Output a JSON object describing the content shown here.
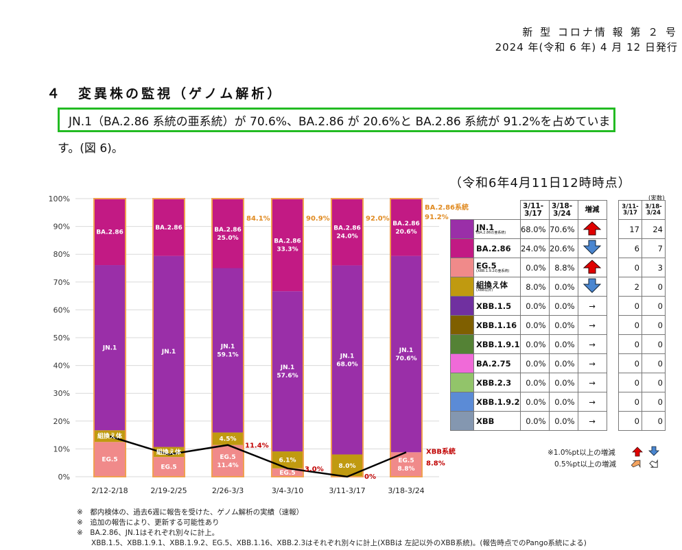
{
  "header": {
    "line1": "新 型 コロナ情 報 第 ２ 号",
    "line2": "2024 年(令和 6 年) 4 月 12 日発行"
  },
  "section_title": "４　変異株の監視（ゲノム解析）",
  "paragraph": {
    "line1": "JN.1（BA.2.86 系統の亜系統）が 70.6%、BA.2.86 が 20.6%と BA.2.86 系統が 91.2%を占めていま",
    "line2": "す。(図 6)。"
  },
  "as_of": "（令和6年4月11日12時時点）",
  "chart_data": {
    "type": "bar",
    "stacked": true,
    "categories": [
      "2/12-2/18",
      "2/19-2/25",
      "2/26-3/3",
      "3/4-3/10",
      "3/11-3/17",
      "3/18-3/24"
    ],
    "y_ticks": [
      "0%",
      "10%",
      "20%",
      "30%",
      "40%",
      "50%",
      "60%",
      "70%",
      "80%",
      "90%",
      "100%"
    ],
    "ylim": [
      0,
      100
    ],
    "series": [
      {
        "name": "EG.5",
        "color": "#f08a8a",
        "values": [
          12.5,
          7.1,
          11.4,
          3.0,
          0.0,
          8.8
        ],
        "labels": [
          [
            "EG.5"
          ],
          [
            "EG.5"
          ],
          [
            "EG.5",
            "11.4%"
          ],
          [
            "EG.5"
          ],
          [],
          [
            "EG.5",
            "8.8%"
          ]
        ]
      },
      {
        "name": "組換え体",
        "color": "#c09a10",
        "values": [
          4.2,
          3.6,
          4.5,
          6.1,
          8.0,
          0.0
        ],
        "labels": [
          [
            "組換え体"
          ],
          [
            "組換え体"
          ],
          [
            "4.5%"
          ],
          [
            "6.1%"
          ],
          [
            "8.0%"
          ],
          []
        ]
      },
      {
        "name": "JN.1",
        "color": "#9a2fa8",
        "values": [
          59.4,
          68.7,
          59.1,
          57.6,
          68.0,
          70.6
        ],
        "labels": [
          [
            "JN.1"
          ],
          [
            "JN.1"
          ],
          [
            "JN.1",
            "59.1%"
          ],
          [
            "JN.1",
            "57.6%"
          ],
          [
            "JN.1",
            "68.0%"
          ],
          [
            "JN.1",
            "70.6%"
          ]
        ]
      },
      {
        "name": "BA.2.86",
        "color": "#c21a84",
        "values": [
          23.9,
          20.6,
          25.0,
          33.3,
          24.0,
          20.6
        ],
        "labels": [
          [
            "BA.2.86"
          ],
          [
            "BA.2.86"
          ],
          [
            "BA.2.86",
            "25.0%"
          ],
          [
            "BA.2.86",
            "33.3%"
          ],
          [
            "BA.2.86",
            "24.0%"
          ],
          [
            "BA.2.86",
            "20.6%"
          ]
        ]
      }
    ],
    "ba286_lineage": {
      "label": "BA.2.86系統",
      "values": [
        null,
        null,
        84.1,
        90.9,
        92.0,
        91.2
      ],
      "labels": [
        "",
        "",
        "84.1%",
        "90.9%",
        "92.0%",
        "91.2%"
      ]
    },
    "xbb_line": {
      "label": "XBB系統",
      "values": [
        14.5,
        8.0,
        11.4,
        3.0,
        0.0,
        8.8
      ],
      "labels": [
        "",
        "",
        "11.4%",
        "3.0%",
        "0%",
        "8.8%"
      ]
    }
  },
  "table": {
    "headers": [
      "3/11-\n3/17",
      "3/18-\n3/24",
      "増減"
    ],
    "rows": [
      {
        "name": "JN.1",
        "sub": "(BA.2.86の亜系統)",
        "color": "#9a2fa8",
        "a": "68.0%",
        "b": "70.6%",
        "trend": "up-red",
        "n1": "17",
        "n2": "24"
      },
      {
        "name": "BA.2.86",
        "sub": "",
        "color": "#c21a84",
        "a": "24.0%",
        "b": "20.6%",
        "trend": "down-blue",
        "n1": "6",
        "n2": "7"
      },
      {
        "name": "EG.5",
        "sub": "(XBB.1.9.2の亜系統)",
        "color": "#f08a8a",
        "a": "0.0%",
        "b": "8.8%",
        "trend": "up-red",
        "n1": "0",
        "n2": "3"
      },
      {
        "name": "組換え体",
        "sub": "(XBB以外)",
        "color": "#c09a10",
        "a": "8.0%",
        "b": "0.0%",
        "trend": "down-blue",
        "n1": "2",
        "n2": "0"
      },
      {
        "name": "XBB.1.5",
        "sub": "",
        "color": "#7030a0",
        "a": "0.0%",
        "b": "0.0%",
        "trend": "→",
        "n1": "0",
        "n2": "0"
      },
      {
        "name": "XBB.1.16",
        "sub": "",
        "color": "#7f5f00",
        "a": "0.0%",
        "b": "0.0%",
        "trend": "→",
        "n1": "0",
        "n2": "0"
      },
      {
        "name": "XBB.1.9.1",
        "sub": "",
        "color": "#548235",
        "a": "0.0%",
        "b": "0.0%",
        "trend": "→",
        "n1": "0",
        "n2": "0"
      },
      {
        "name": "BA.2.75",
        "sub": "",
        "color": "#f06ad8",
        "a": "0.0%",
        "b": "0.0%",
        "trend": "→",
        "n1": "0",
        "n2": "0"
      },
      {
        "name": "XBB.2.3",
        "sub": "",
        "color": "#92c46a",
        "a": "0.0%",
        "b": "0.0%",
        "trend": "→",
        "n1": "0",
        "n2": "0"
      },
      {
        "name": "XBB.1.9.2",
        "sub": "",
        "color": "#5b8bd6",
        "a": "0.0%",
        "b": "0.0%",
        "trend": "→",
        "n1": "0",
        "n2": "0"
      },
      {
        "name": "XBB",
        "sub": "",
        "color": "#8497b0",
        "a": "0.0%",
        "b": "0.0%",
        "trend": "→",
        "n1": "0",
        "n2": "0"
      }
    ],
    "count_title": "(実数)",
    "count_headers": [
      "3/11-\n3/17",
      "3/18-\n3/24"
    ]
  },
  "legend": {
    "line1": "※1.0%pt以上の増減",
    "line2": "0.5%pt以上の増減"
  },
  "footnotes": [
    "※　都内検体の、過去6週に報告を受けた、ゲノム解析の実績（速報）",
    "※　追加の報告により、更新する可能性あり",
    "※　BA.2.86、JN.1はそれぞれ別々に計上。",
    "　　XBB.1.5、XBB.1.9.1、XBB.1.9.2、EG.5、XBB.1.16、XBB.2.3はそれぞれ別々に計上(XBBは 左記以外のXBB系統)。(報告時点でのPango系統による)"
  ]
}
